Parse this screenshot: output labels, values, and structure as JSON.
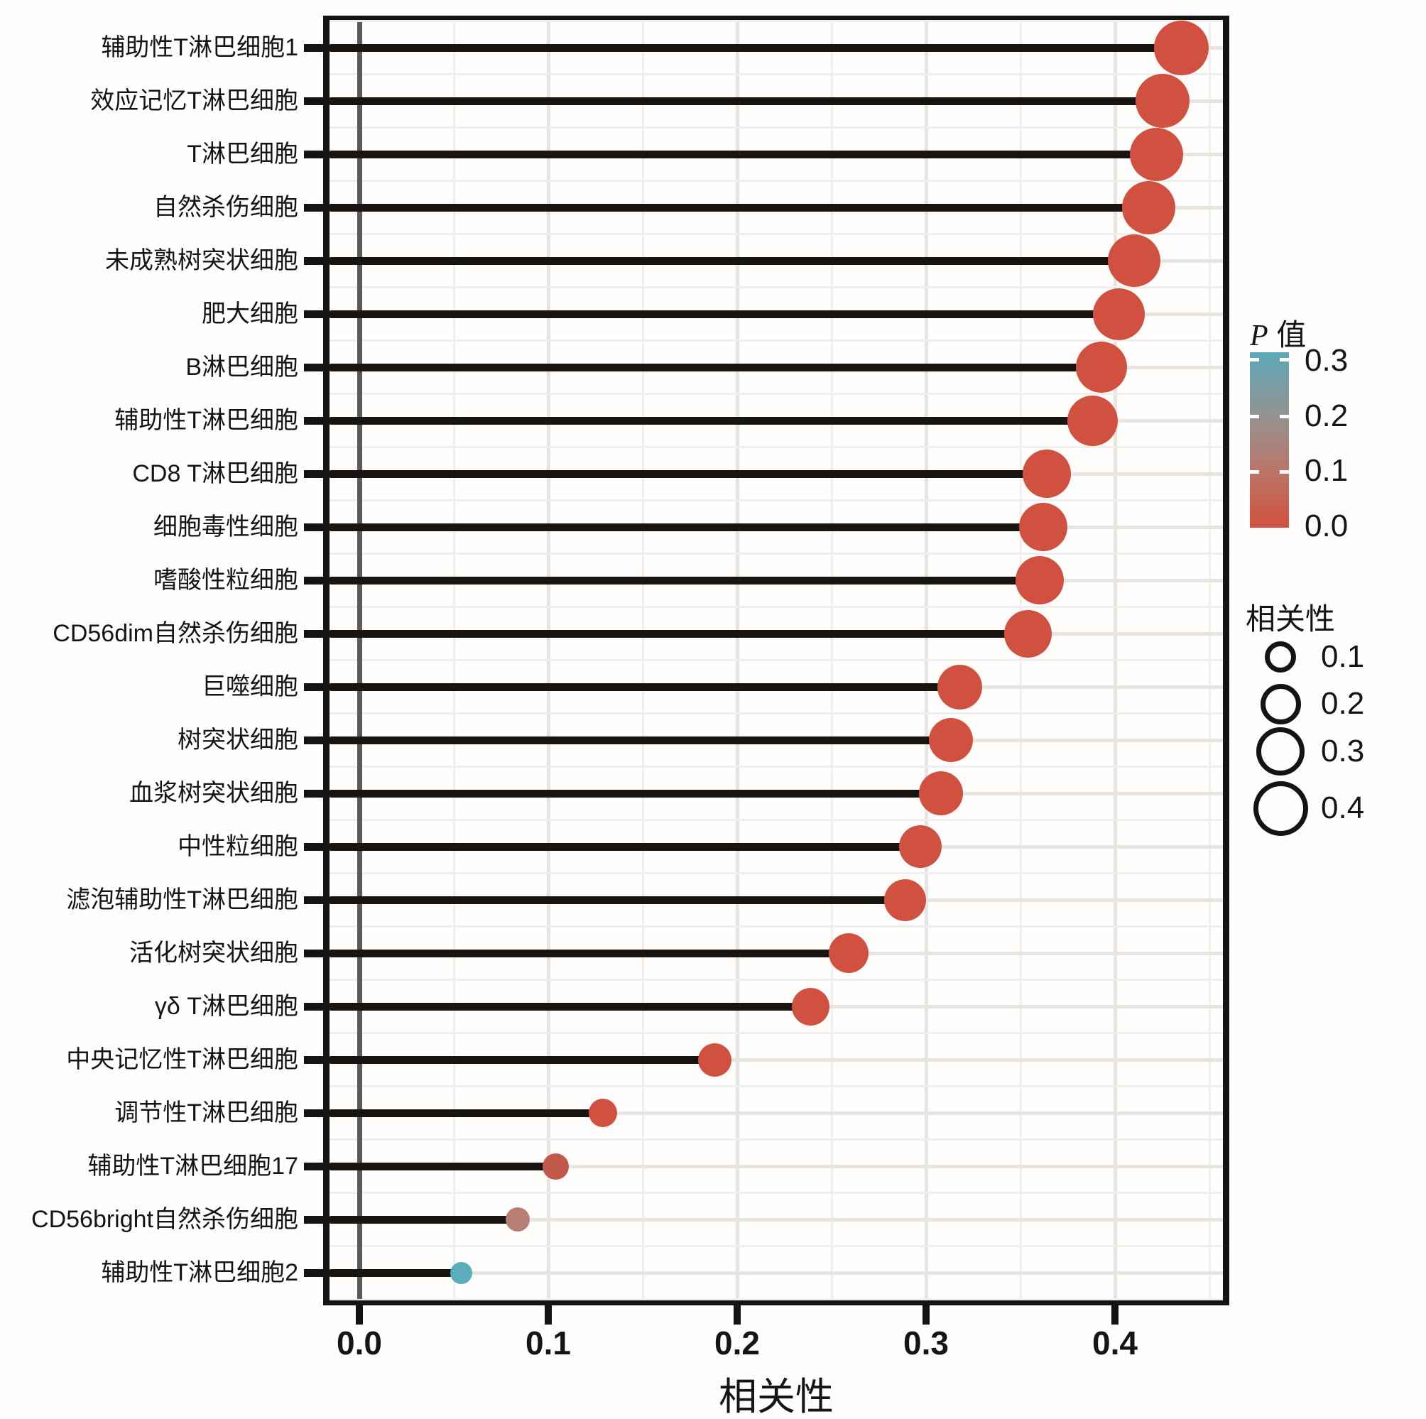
{
  "chart_data": {
    "type": "lollipop",
    "orientation": "horizontal",
    "xlabel": "相关性",
    "xlim": [
      -0.019,
      0.461
    ],
    "x_ticks": [
      0.0,
      0.1,
      0.2,
      0.3,
      0.4
    ],
    "x_tick_labels": [
      "0.0",
      "0.1",
      "0.2",
      "0.3",
      "0.4"
    ],
    "grid": true,
    "categories": [
      "辅助性T淋巴细胞1",
      "效应记忆T淋巴细胞",
      "T淋巴细胞",
      "自然杀伤细胞",
      "未成熟树突状细胞",
      "肥大细胞",
      "B淋巴细胞",
      "辅助性T淋巴细胞",
      "CD8 T淋巴细胞",
      "细胞毒性细胞",
      "嗜酸性粒细胞",
      "CD56dim自然杀伤细胞",
      "巨噬细胞",
      "树突状细胞",
      "血浆树突状细胞",
      "中性粒细胞",
      "滤泡辅助性T淋巴细胞",
      "活化树突状细胞",
      "γδ T淋巴细胞",
      "中央记忆性T淋巴细胞",
      "调节性T淋巴细胞",
      "辅助性T淋巴细胞17",
      "CD56bright自然杀伤细胞",
      "辅助性T淋巴细胞2"
    ],
    "values": [
      0.435,
      0.425,
      0.422,
      0.418,
      0.41,
      0.402,
      0.393,
      0.388,
      0.364,
      0.362,
      0.36,
      0.354,
      0.318,
      0.313,
      0.308,
      0.297,
      0.289,
      0.259,
      0.239,
      0.188,
      0.129,
      0.104,
      0.084,
      0.054
    ],
    "point_colors": [
      "#d0513f",
      "#d0513f",
      "#d0513f",
      "#d0513f",
      "#d0513f",
      "#d0513f",
      "#d0513f",
      "#d0513f",
      "#d0513f",
      "#d0513f",
      "#d0513f",
      "#d0513f",
      "#d0513f",
      "#d0513f",
      "#d0513f",
      "#d0513f",
      "#d0513f",
      "#d0513f",
      "#d0513f",
      "#d0513f",
      "#d0513f",
      "#c25a4c",
      "#b87d74",
      "#5badbc"
    ],
    "color_encodes": "P value (0 = red, 0.3 = teal)",
    "size_encodes": "correlation magnitude",
    "legend_p": {
      "title_italic": "P",
      "title_text": "值",
      "tick_labels": [
        "0.3",
        "0.2",
        "0.1",
        "0.0"
      ],
      "gradient_top_to_bottom": [
        "#5aa9b7",
        "#97918f",
        "#bd7366",
        "#d0513f"
      ]
    },
    "legend_size": {
      "title": "相关性",
      "items": [
        {
          "label": "0.1"
        },
        {
          "label": "0.2"
        },
        {
          "label": "0.3"
        },
        {
          "label": "0.4"
        }
      ]
    },
    "styles": {
      "stem_color": "#171412",
      "panel_border": "#141414",
      "zero_line": "#5a5a5a",
      "grid_major": "#e8e4e1",
      "grid_minor": "#f1eeec",
      "main_red": "#d0513f",
      "teal": "#5badbc"
    }
  }
}
